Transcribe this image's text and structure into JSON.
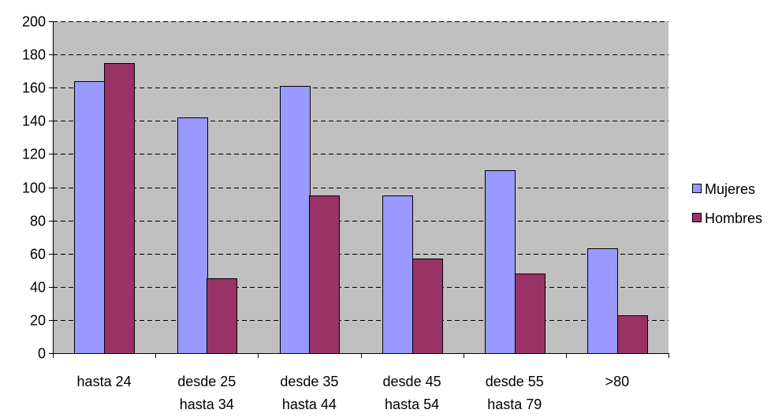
{
  "chart_data": {
    "type": "bar",
    "categories": [
      [
        "hasta 24"
      ],
      [
        "desde 25",
        "hasta 34"
      ],
      [
        "desde 35",
        "hasta 44"
      ],
      [
        "desde 45",
        "hasta 54"
      ],
      [
        "desde 55",
        "hasta 79"
      ],
      [
        ">80"
      ]
    ],
    "series": [
      {
        "name": "Mujeres",
        "values": [
          164,
          142,
          161,
          95,
          110,
          63
        ],
        "color": "#9999FF"
      },
      {
        "name": "Hombres",
        "values": [
          175,
          45,
          95,
          57,
          48,
          23
        ],
        "color": "#993366"
      }
    ],
    "ylim": [
      0,
      200
    ],
    "yticks": [
      0,
      20,
      40,
      60,
      80,
      100,
      120,
      140,
      160,
      180,
      200
    ],
    "grid": true,
    "grid_style": "dashed",
    "plot_background": "#C0C0C0",
    "legend_position": "right",
    "title": "",
    "xlabel": "",
    "ylabel": ""
  }
}
